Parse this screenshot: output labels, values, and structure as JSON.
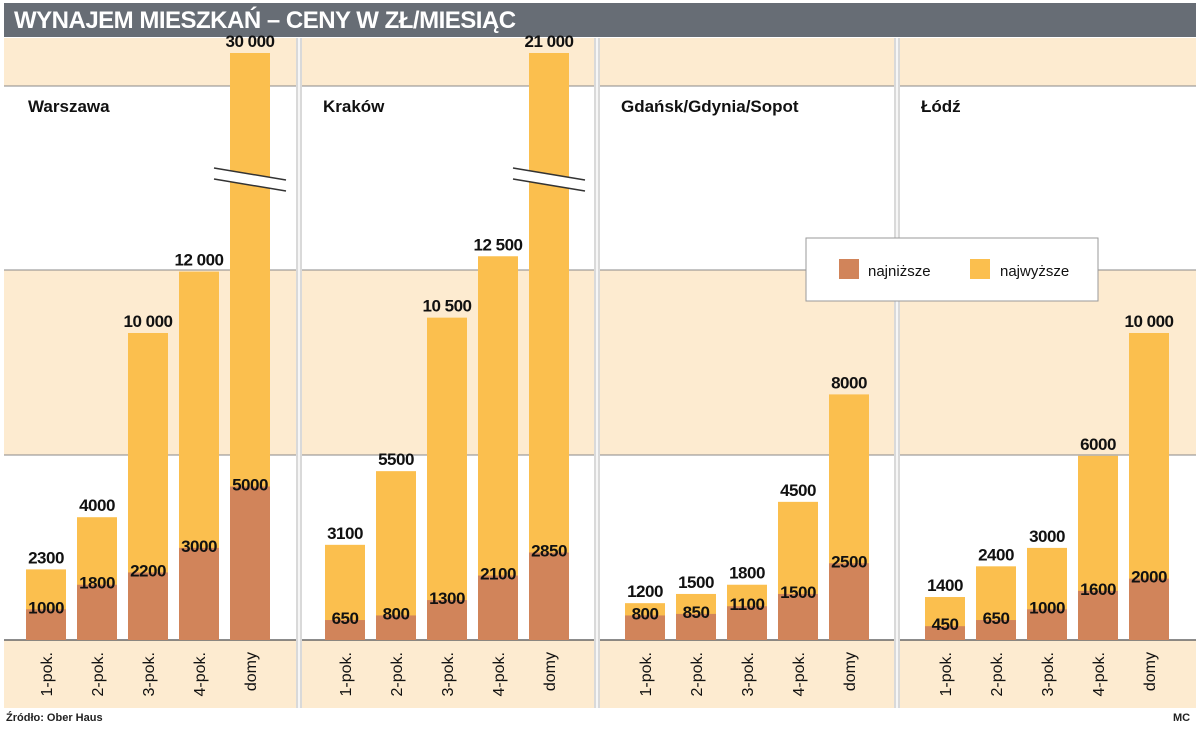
{
  "header": {
    "title": "WYNAJEM MIESZKAŃ – CENY W ZŁ/MIESIĄC"
  },
  "legend": {
    "low_label": "najniższe",
    "high_label": "najwyższe"
  },
  "footer": {
    "source": "Źródło: Ober Haus",
    "credit": "MC"
  },
  "colors": {
    "low": "#d1845a",
    "high": "#fbbf4e",
    "band": "#fdebd0",
    "bg": "#ffffff",
    "title_bg": "#676d75"
  },
  "chart_data": [
    {
      "type": "bar",
      "title": "Warszawa",
      "categories": [
        "1-pok.",
        "2-pok.",
        "3-pok.",
        "4-pok.",
        "domy"
      ],
      "series": [
        {
          "name": "najniższe",
          "values": [
            1000,
            1800,
            2200,
            3000,
            5000
          ]
        },
        {
          "name": "najwyższe",
          "values": [
            2300,
            4000,
            10000,
            12000,
            30000
          ]
        }
      ],
      "value_labels": {
        "low": [
          "1000",
          "1800",
          "2200",
          "3000",
          "5000"
        ],
        "high": [
          "2300",
          "4000",
          "10 000",
          "12 000",
          "30 000"
        ]
      },
      "axis_break": "domy"
    },
    {
      "type": "bar",
      "title": "Kraków",
      "categories": [
        "1-pok.",
        "2-pok.",
        "3-pok.",
        "4-pok.",
        "domy"
      ],
      "series": [
        {
          "name": "najniższe",
          "values": [
            650,
            800,
            1300,
            2100,
            2850
          ]
        },
        {
          "name": "najwyższe",
          "values": [
            3100,
            5500,
            10500,
            12500,
            21000
          ]
        }
      ],
      "value_labels": {
        "low": [
          "650",
          "800",
          "1300",
          "2100",
          "2850"
        ],
        "high": [
          "3100",
          "5500",
          "10 500",
          "12 500",
          "21 000"
        ]
      },
      "axis_break": "domy"
    },
    {
      "type": "bar",
      "title": "Gdańsk/Gdynia/Sopot",
      "categories": [
        "1-pok.",
        "2-pok.",
        "3-pok.",
        "4-pok.",
        "domy"
      ],
      "series": [
        {
          "name": "najniższe",
          "values": [
            800,
            850,
            1100,
            1500,
            2500
          ]
        },
        {
          "name": "najwyższe",
          "values": [
            1200,
            1500,
            1800,
            4500,
            8000
          ]
        }
      ],
      "value_labels": {
        "low": [
          "800",
          "850",
          "1100",
          "1500",
          "2500"
        ],
        "high": [
          "1200",
          "1500",
          "1800",
          "4500",
          "8000"
        ]
      },
      "axis_break": ""
    },
    {
      "type": "bar",
      "title": "Łódź",
      "categories": [
        "1-pok.",
        "2-pok.",
        "3-pok.",
        "4-pok.",
        "domy"
      ],
      "series": [
        {
          "name": "najniższe",
          "values": [
            450,
            650,
            1000,
            1600,
            2000
          ]
        },
        {
          "name": "najwyższe",
          "values": [
            1400,
            2400,
            3000,
            6000,
            10000
          ]
        }
      ],
      "value_labels": {
        "low": [
          "450",
          "650",
          "1000",
          "1600",
          "2000"
        ],
        "high": [
          "1400",
          "2400",
          "3000",
          "6000",
          "10 000"
        ]
      },
      "axis_break": ""
    }
  ]
}
